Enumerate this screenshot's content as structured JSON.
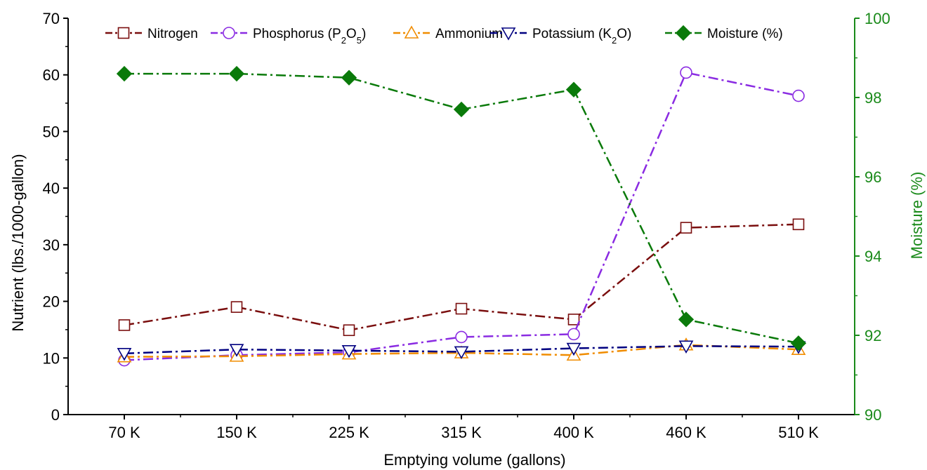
{
  "chart_data": {
    "type": "line",
    "xlabel": "Emptying volume (gallons)",
    "ylabel": "Nutrient (lbs./1000-gallon)",
    "y2label": "Moisture (%)",
    "categories": [
      "70 K",
      "150 K",
      "225 K",
      "315 K",
      "400 K",
      "460 K",
      "510 K"
    ],
    "ylim": [
      0,
      70
    ],
    "y_ticks": [
      "0",
      "10",
      "20",
      "30",
      "40",
      "50",
      "60",
      "70"
    ],
    "y2lim": [
      90,
      100
    ],
    "y2_ticks": [
      "90",
      "92",
      "94",
      "96",
      "98",
      "100"
    ],
    "right_axis_color": "#1a8a1a",
    "legend_position": "top",
    "grid": false,
    "series": [
      {
        "name": "Nitrogen",
        "axis": "left",
        "color": "#7a0e0e",
        "marker": "square",
        "filled": false,
        "dash": "dash-dot",
        "values": [
          15.8,
          19.0,
          14.9,
          18.7,
          16.8,
          33.0,
          33.6
        ]
      },
      {
        "name": "Phosphorus (P2O5)",
        "name_parts": {
          "base": "Phosphorus (P",
          "sub1": "2",
          "mid": "O",
          "sub2": "5",
          "end": ")"
        },
        "axis": "left",
        "color": "#8a2be2",
        "marker": "circle",
        "filled": false,
        "dash": "dash-dot",
        "values": [
          9.6,
          10.5,
          11.0,
          13.7,
          14.2,
          60.4,
          56.3
        ]
      },
      {
        "name": "Ammonium",
        "axis": "left",
        "color": "#f08c00",
        "marker": "triangle-up",
        "filled": false,
        "dash": "dash-dot",
        "values": [
          10.2,
          10.3,
          10.7,
          10.9,
          10.5,
          12.3,
          11.5
        ]
      },
      {
        "name": "Potassium (K2O)",
        "name_parts": {
          "base": "Potassium (K",
          "sub1": "2",
          "end": "O)"
        },
        "axis": "left",
        "color": "#000080",
        "marker": "triangle-down",
        "filled": false,
        "dash": "dash-dot",
        "values": [
          10.8,
          11.5,
          11.3,
          11.1,
          11.7,
          12.1,
          12.0
        ]
      },
      {
        "name": "Moisture (%)",
        "axis": "right",
        "color": "#0a7a0a",
        "marker": "diamond",
        "filled": true,
        "dash": "dash-dot",
        "values": [
          98.6,
          98.6,
          98.5,
          97.7,
          98.2,
          92.4,
          91.8
        ]
      }
    ]
  }
}
